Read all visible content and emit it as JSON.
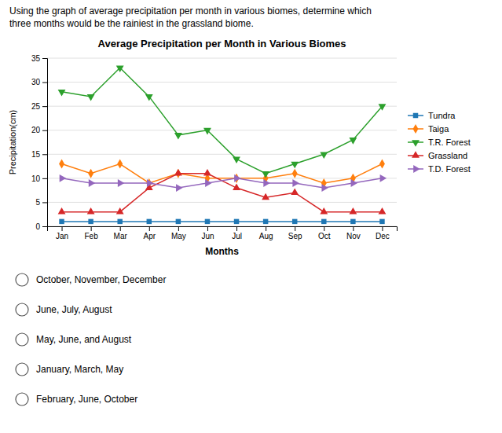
{
  "question": [
    "Using the graph of average precipitation per month in various biomes, determine which",
    "three months would be the rainiest in the grassland biome."
  ],
  "options": [
    "October, November, December",
    "June, July, August",
    "May, June, and August",
    "January, March, May",
    "February, June, October"
  ],
  "chart_data": {
    "type": "line",
    "title": "Average Precipitation per Month in Various Biomes",
    "xlabel": "Months",
    "ylabel": "Precipitation(cm)",
    "categories": [
      "Jan",
      "Feb",
      "Mar",
      "Apr",
      "May",
      "Jun",
      "Jul",
      "Aug",
      "Sep",
      "Oct",
      "Nov",
      "Dec"
    ],
    "series": [
      {
        "name": "Tundra",
        "marker": "square",
        "values": [
          1,
          1,
          1,
          1,
          1,
          1,
          1,
          1,
          1,
          1,
          1,
          1
        ]
      },
      {
        "name": "Taiga",
        "marker": "diamond",
        "values": [
          13,
          11,
          13,
          9,
          11,
          10,
          10,
          10,
          11,
          9,
          10,
          13
        ]
      },
      {
        "name": "T.R. Forest",
        "marker": "triangle-down",
        "values": [
          28,
          27,
          33,
          27,
          19,
          20,
          14,
          11,
          13,
          15,
          18,
          25
        ]
      },
      {
        "name": "Grassland",
        "marker": "triangle-up",
        "values": [
          3,
          3,
          3,
          8,
          11,
          11,
          8,
          6,
          7,
          3,
          3,
          3
        ]
      },
      {
        "name": "T.D. Forest",
        "marker": "triangle-right",
        "values": [
          10,
          9,
          9,
          9,
          8,
          9,
          10,
          9,
          9,
          8,
          9,
          10
        ]
      }
    ],
    "ylim": [
      0,
      35
    ],
    "yticks": [
      0,
      5,
      10,
      15,
      20,
      25,
      30,
      35
    ],
    "grid": true,
    "legend": "right"
  }
}
